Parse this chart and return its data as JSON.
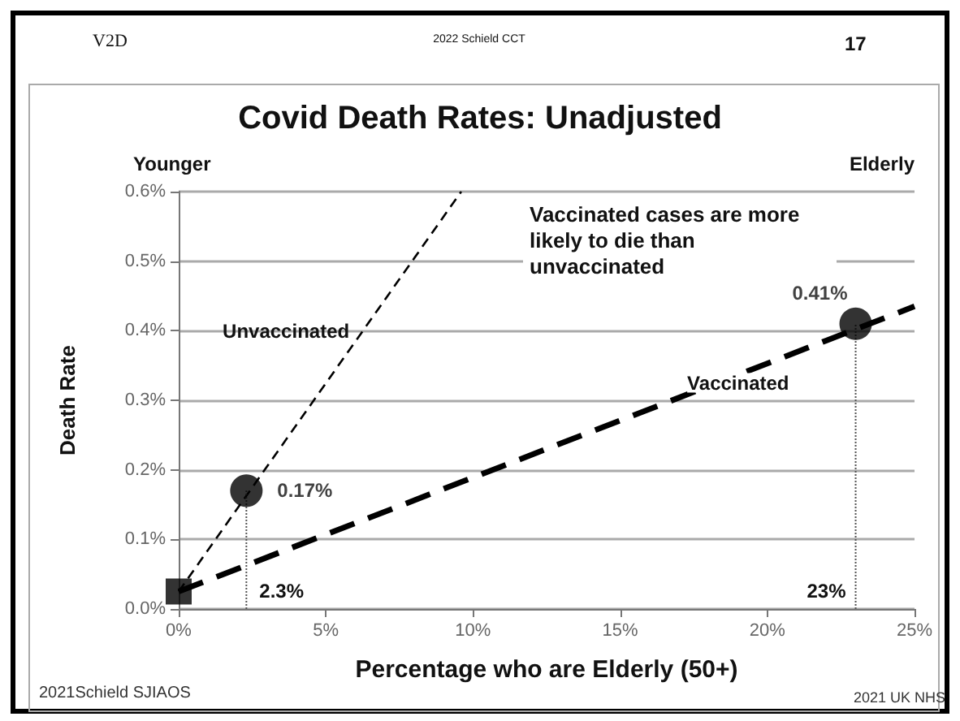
{
  "chart_data": {
    "type": "line",
    "title": "Covid Death Rates: Unadjusted",
    "xlabel": "Percentage who are Elderly (50+)",
    "ylabel": "Death Rate",
    "xlim": [
      0,
      25
    ],
    "xticks": [
      {
        "value": 0,
        "label": "0%"
      },
      {
        "value": 5,
        "label": "5%"
      },
      {
        "value": 10,
        "label": "10%"
      },
      {
        "value": 15,
        "label": "15%"
      },
      {
        "value": 20,
        "label": "20%"
      },
      {
        "value": 25,
        "label": "25%"
      }
    ],
    "ylim": [
      0,
      0.6
    ],
    "yticks": [
      {
        "value": 0,
        "label": "0.0%"
      },
      {
        "value": 0.1,
        "label": "0.1%"
      },
      {
        "value": 0.2,
        "label": "0.2%"
      },
      {
        "value": 0.3,
        "label": "0.3%"
      },
      {
        "value": 0.4,
        "label": "0.4%"
      },
      {
        "value": 0.5,
        "label": "0.5%"
      },
      {
        "value": 0.6,
        "label": "0.6%"
      }
    ],
    "grid": "y",
    "series": [
      {
        "name": "Unvaccinated",
        "color": "#000000",
        "x": [
          0,
          9.6
        ],
        "values": [
          0.025,
          0.6
        ],
        "line_style": "dashed",
        "marker": "none"
      },
      {
        "name": "Vaccinated",
        "color": "#000000",
        "x": [
          0,
          25
        ],
        "values": [
          0.025,
          0.435
        ],
        "line_style": "dashed",
        "marker": "none"
      },
      {
        "type": "line",
        "color": "#555555",
        "x": [
          2.3,
          2.3
        ],
        "values": [
          0,
          0.17
        ],
        "line_style": "dotted",
        "marker": "none"
      },
      {
        "type": "line",
        "color": "#555555",
        "x": [
          23,
          23
        ],
        "values": [
          0,
          0.41
        ],
        "line_style": "dotted",
        "marker": "none"
      },
      {
        "type": "scatter",
        "color": "#000000",
        "x": [
          2.3,
          23
        ],
        "values": [
          0.17,
          0.41
        ],
        "value_labels": [
          "0.17%",
          "0.41%"
        ],
        "marker": "circle"
      },
      {
        "type": "scatter",
        "color": "#000000",
        "x": [
          0
        ],
        "values": [
          0.025
        ],
        "marker": "square"
      }
    ],
    "annotations": [
      "V2D",
      "2022 Schield CCT",
      "17",
      "Younger",
      "Elderly",
      "Vaccinated cases are more likely to die than unvaccinated",
      "2021Schield SJIAOS",
      "2021 UK NHS",
      {
        "text": "2.3%",
        "x": 2.3,
        "y": 0
      },
      {
        "text": "23%",
        "x": 23,
        "y": 0
      }
    ]
  }
}
